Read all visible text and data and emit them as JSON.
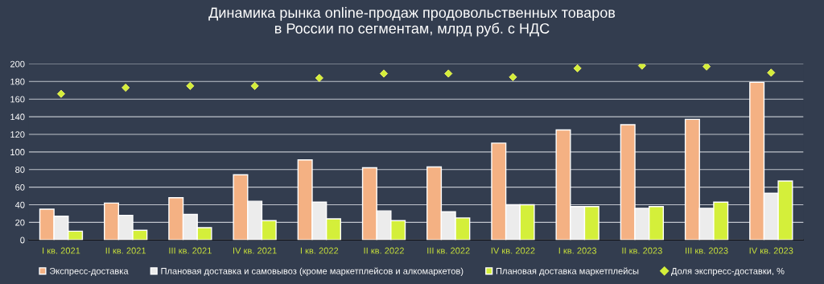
{
  "chart_data": {
    "type": "bar",
    "title": "Динамика рынка online-продаж продовольственных товаров\nв России по сегментам, млрд руб. с НДС",
    "categories": [
      "I кв. 2021",
      "II кв. 2021",
      "III кв. 2021",
      "IV кв. 2021",
      "I кв. 2022",
      "II кв. 2022",
      "III кв. 2022",
      "IV кв. 2022",
      "I кв. 2023",
      "II кв. 2023",
      "III кв. 2023",
      "IV кв. 2023"
    ],
    "series": [
      {
        "name": "Экспресс-доставка",
        "color": "#f4b183",
        "values": [
          35,
          42,
          48,
          74,
          91,
          82,
          83,
          110,
          125,
          131,
          137,
          179
        ]
      },
      {
        "name": "Плановая доставка и самовывоз (кроме маркетплейсов и алкомаркетов)",
        "color": "#ececec",
        "values": [
          27,
          28,
          29,
          44,
          43,
          33,
          32,
          40,
          38,
          36,
          36,
          53
        ]
      },
      {
        "name": "Плановая доставка маркетплейсы",
        "color": "#d4ef3a",
        "values": [
          10,
          11,
          14,
          22,
          24,
          22,
          25,
          40,
          38,
          38,
          43,
          67
        ]
      },
      {
        "name": "Доля экспресс-доставки, %",
        "type": "scatter",
        "marker": "diamond",
        "color": "#d4ef3a",
        "values": [
          166,
          173,
          175,
          175,
          184,
          189,
          189,
          185,
          195,
          198,
          197,
          190
        ]
      }
    ],
    "ylim": [
      0,
      200
    ],
    "yticks": [
      0,
      20,
      40,
      60,
      80,
      100,
      120,
      140,
      160,
      180,
      200
    ],
    "grid": "y",
    "legend": "bottom"
  }
}
